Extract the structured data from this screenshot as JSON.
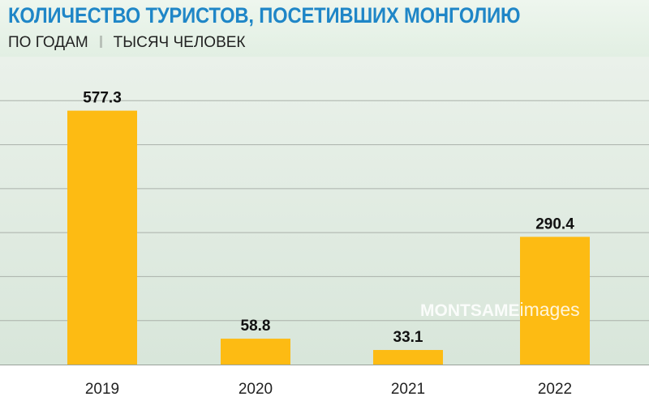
{
  "title": "КОЛИЧЕСТВО ТУРИСТОВ, ПОСЕТИВШИХ МОНГОЛИЮ",
  "subtitle_left": "ПО ГОДАМ",
  "subtitle_right": "ТЫСЯЧ ЧЕЛОВЕК",
  "watermark": {
    "brand": "MONTSAME",
    "suffix": "images"
  },
  "colors": {
    "bar": "#fdbb13",
    "title": "#1f86c7",
    "grid": "#aab1aa"
  },
  "chart_data": {
    "type": "bar",
    "categories": [
      "2019",
      "2020",
      "2021",
      "2022"
    ],
    "values": [
      577.3,
      58.8,
      33.1,
      290.4
    ],
    "data_labels": [
      "577.3",
      "58.8",
      "33.1",
      "290.4"
    ],
    "title": "КОЛИЧЕСТВО ТУРИСТОВ, ПОСЕТИВШИХ МОНГОЛИЮ",
    "xlabel": "",
    "ylabel": "",
    "ylim": [
      0,
      700
    ],
    "grid": true,
    "gridline_values": [
      100,
      200,
      300,
      400,
      500,
      600
    ]
  }
}
